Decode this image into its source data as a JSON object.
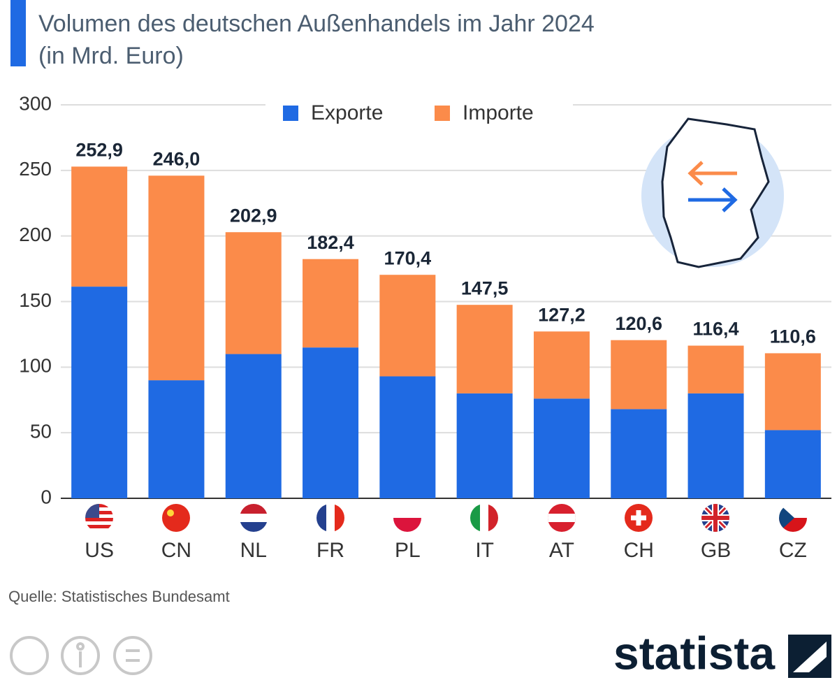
{
  "chart_data": {
    "type": "stacked_bar",
    "title": "Volumen des deutschen Außenhandels im Jahr 2024",
    "subtitle": "(in Mrd. Euro)",
    "categories": [
      "US",
      "CN",
      "NL",
      "FR",
      "PL",
      "IT",
      "AT",
      "CH",
      "GB",
      "CZ"
    ],
    "series": [
      {
        "name": "Exporte",
        "color": "#1f6ae3",
        "values": [
          161.4,
          90.0,
          110.0,
          115.0,
          93.0,
          80.0,
          76.0,
          68.0,
          80.0,
          52.0
        ]
      },
      {
        "name": "Importe",
        "color": "#fb8b4a",
        "values": [
          91.5,
          156.0,
          92.9,
          67.4,
          77.4,
          67.5,
          51.2,
          52.6,
          36.4,
          58.6
        ]
      }
    ],
    "totals": [
      252.9,
      246.0,
      202.9,
      182.4,
      170.4,
      147.5,
      127.2,
      120.6,
      116.4,
      110.6
    ],
    "total_labels": [
      "252,9",
      "246,0",
      "202,9",
      "182,4",
      "170,4",
      "147,5",
      "127,2",
      "120,6",
      "116,4",
      "110,6"
    ],
    "ylim": [
      0,
      300
    ],
    "yticks": [
      0,
      50,
      100,
      150,
      200,
      250,
      300
    ],
    "grid": true,
    "legend": "top",
    "source": "Quelle: Statistisches Bundesamt",
    "brand": "statista"
  }
}
